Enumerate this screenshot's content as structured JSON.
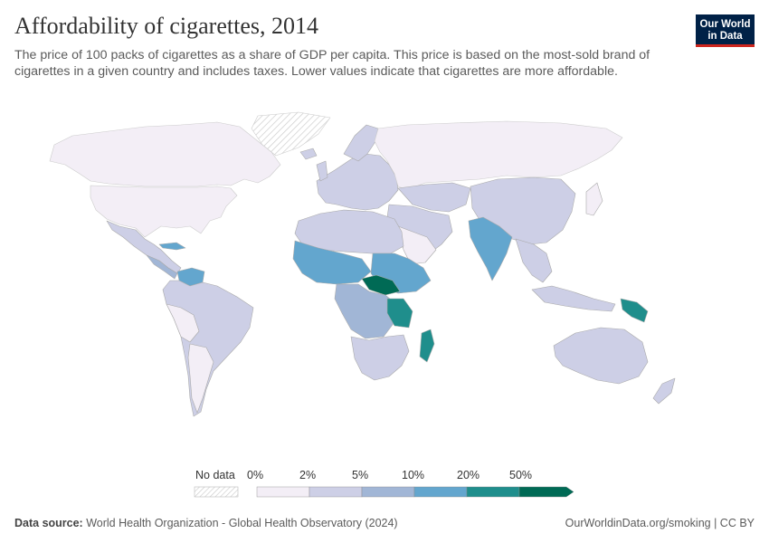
{
  "header": {
    "title": "Affordability of cigarettes, 2014",
    "subtitle": "The price of 100 packs of cigarettes as a share of GDP per capita. This price is based on the most-sold brand of cigarettes in a given country and includes taxes. Lower values indicate that cigarettes are more affordable."
  },
  "logo": {
    "line1": "Our World",
    "line2": "in Data"
  },
  "legend": {
    "no_data_label": "No data",
    "ticks": [
      "0%",
      "2%",
      "5%",
      "10%",
      "20%",
      "50%"
    ],
    "colors": [
      "#f3eef6",
      "#cdcfe6",
      "#a1b6d6",
      "#63a6ce",
      "#1f8e8c",
      "#006a55"
    ],
    "no_data_color": "#e7e7e7"
  },
  "footer": {
    "source_label": "Data source:",
    "source_text": "World Health Organization - Global Health Observatory (2024)",
    "link": "OurWorldinData.org/smoking | CC BY"
  },
  "map_colors": {
    "ocean": "#ffffff",
    "border": "#ffffff",
    "low": "#f3eef6",
    "mid": "#cdcfe6",
    "midhigh": "#a1b6d6",
    "high": "#63a6ce",
    "veryhigh": "#1f8e8c",
    "top": "#006a55"
  }
}
